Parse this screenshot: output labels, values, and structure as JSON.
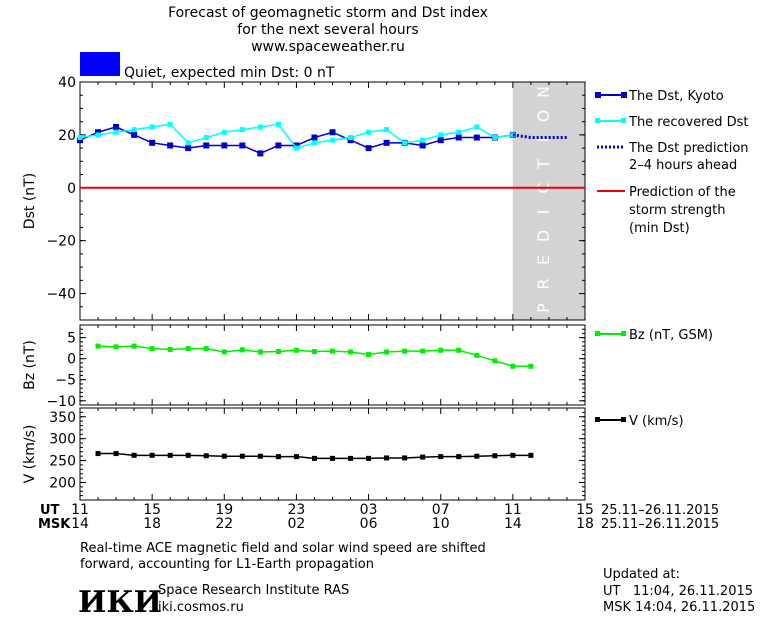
{
  "header": {
    "title_line1": "Forecast of geomagnetic storm and Dst index",
    "title_line2": "for the next several hours",
    "url": "www.spaceweather.ru",
    "status_text": "Quiet, expected min Dst: 0 nT",
    "status_color": "#0000ff"
  },
  "colors": {
    "dst_kyoto": "#0000cc",
    "dst_recovered": "#00ffff",
    "dst_prediction": "#0000cc",
    "storm_line": "#ee0000",
    "bz": "#00ee00",
    "v": "#000000",
    "prediction_zone": "#d3d3d3"
  },
  "prediction_label": "PREDICTION",
  "time_axis": {
    "ut_label": "UT",
    "msk_label": "MSK",
    "ut_ticks": [
      "11",
      "15",
      "19",
      "23",
      "03",
      "07",
      "11",
      "15"
    ],
    "msk_ticks": [
      "14",
      "18",
      "22",
      "02",
      "06",
      "10",
      "14",
      "18"
    ],
    "range_label_ut": "25.11–26.11.2015",
    "range_label_msk": "25.11–26.11.2015"
  },
  "chart_data": [
    {
      "type": "line",
      "panel": "dst",
      "ylabel": "Dst (nT)",
      "ylim": [
        -50,
        40
      ],
      "yticks": [
        -40,
        -20,
        0,
        20,
        40
      ],
      "x_hours": [
        0,
        28
      ],
      "prediction_start_hour": 24,
      "series": [
        {
          "name": "The Dst, Kyoto",
          "x": [
            0,
            1,
            2,
            3,
            4,
            5,
            6,
            7,
            8,
            9,
            10,
            11,
            12,
            13,
            14,
            15,
            16,
            17,
            18,
            19,
            20,
            21,
            22,
            23,
            24
          ],
          "values": [
            18,
            21,
            23,
            20,
            17,
            16,
            15,
            16,
            16,
            16,
            13,
            16,
            16,
            19,
            21,
            18,
            15,
            17,
            17,
            16,
            18,
            19,
            19,
            19,
            20
          ]
        },
        {
          "name": "The recovered Dst",
          "x": [
            0,
            1,
            2,
            3,
            4,
            5,
            6,
            7,
            8,
            9,
            10,
            11,
            12,
            13,
            14,
            15,
            16,
            17,
            18,
            19,
            20,
            21,
            22,
            23,
            24
          ],
          "values": [
            19,
            20,
            21,
            22,
            23,
            24,
            17,
            19,
            21,
            22,
            23,
            24,
            15,
            17,
            18,
            19,
            21,
            22,
            17,
            18,
            20,
            21,
            23,
            19,
            20
          ]
        },
        {
          "name": "The Dst prediction 2–4 hours ahead",
          "x": [
            24,
            25,
            26,
            27
          ],
          "values": [
            20,
            19,
            19,
            19
          ]
        },
        {
          "name": "Prediction of the storm strength (min Dst)",
          "x": [
            0,
            28
          ],
          "values": [
            0,
            0
          ]
        }
      ]
    },
    {
      "type": "line",
      "panel": "bz",
      "ylabel": "Bz (nT)",
      "ylim": [
        -11,
        8
      ],
      "yticks": [
        -10,
        -5,
        0,
        5
      ],
      "series": [
        {
          "name": "Bz (nT, GSM)",
          "x": [
            1,
            2,
            3,
            4,
            5,
            6,
            7,
            8,
            9,
            10,
            11,
            12,
            13,
            14,
            15,
            16,
            17,
            18,
            19,
            20,
            21,
            22,
            23,
            24,
            25
          ],
          "values": [
            3,
            2.8,
            3,
            2.4,
            2.2,
            2.4,
            2.4,
            1.6,
            2.1,
            1.6,
            1.7,
            2,
            1.7,
            1.8,
            1.6,
            1,
            1.6,
            1.8,
            1.8,
            2,
            2,
            0.8,
            -0.5,
            -1.8,
            -1.8
          ]
        }
      ]
    },
    {
      "type": "line",
      "panel": "v",
      "ylabel": "V (km/s)",
      "ylim": [
        160,
        370
      ],
      "yticks": [
        200,
        250,
        300,
        350
      ],
      "series": [
        {
          "name": "V (km/s)",
          "x": [
            1,
            2,
            3,
            4,
            5,
            6,
            7,
            8,
            9,
            10,
            11,
            12,
            13,
            14,
            15,
            16,
            17,
            18,
            19,
            20,
            21,
            22,
            23,
            24,
            25
          ],
          "values": [
            266,
            266,
            262,
            262,
            262,
            262,
            261,
            260,
            260,
            260,
            259,
            259,
            255,
            255,
            255,
            255,
            256,
            256,
            258,
            259,
            259,
            260,
            261,
            262,
            262
          ]
        }
      ]
    }
  ],
  "footer": {
    "note_line1": "Real-time ACE magnetic field and solar wind speed are shifted",
    "note_line2": "forward, accounting for L1-Earth propagation",
    "logo_text": "ИКИ",
    "institute": "Space Research Institute RAS",
    "institute_url": "iki.cosmos.ru",
    "updated_label": "Updated at:",
    "updated_ut": "UT   11:04, 26.11.2015",
    "updated_msk": "MSK 14:04, 26.11.2015"
  }
}
